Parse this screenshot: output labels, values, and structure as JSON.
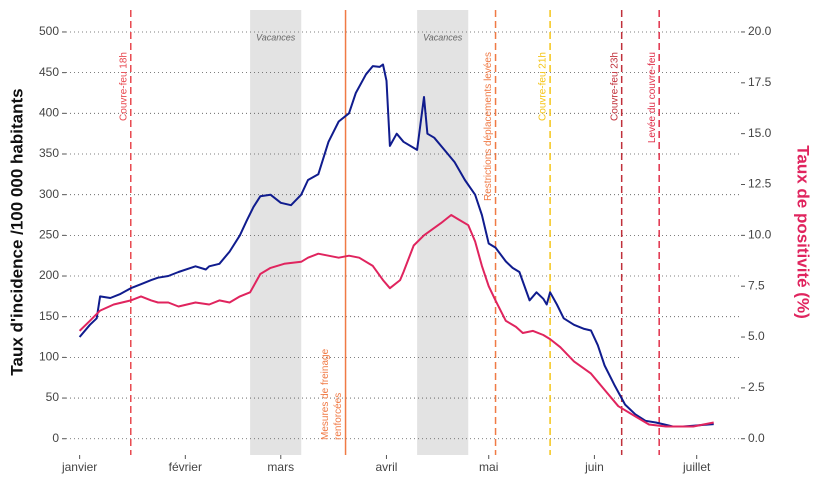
{
  "chart_data": {
    "type": "line",
    "y_label": "Taux d'incidence /100 000 habitants",
    "y2_label": "Taux de positivité (%)",
    "y2_label_color": "#e0245e",
    "xlim": [
      -4,
      194
    ],
    "xticks": [
      {
        "value": 0,
        "label": "janvier"
      },
      {
        "value": 31,
        "label": "février"
      },
      {
        "value": 59,
        "label": "mars"
      },
      {
        "value": 90,
        "label": "avril"
      },
      {
        "value": 120,
        "label": "mai"
      },
      {
        "value": 151,
        "label": "juin"
      },
      {
        "value": 181,
        "label": "juillet"
      }
    ],
    "ylim": [
      -20,
      527
    ],
    "yticks": [
      0,
      50,
      100,
      150,
      200,
      250,
      300,
      350,
      400,
      450,
      500
    ],
    "y2lim": [
      -0.8,
      21.08
    ],
    "y2ticks": [
      {
        "value": 0,
        "label": "0.0"
      },
      2.5,
      {
        "value": 5,
        "label": "5.0"
      },
      7.5,
      {
        "value": 10,
        "label": "10.0"
      },
      12.5,
      {
        "value": 15,
        "label": "15.0"
      },
      17.5,
      {
        "value": 20,
        "label": "20.0"
      }
    ],
    "grid": true,
    "shaded": [
      {
        "label": "Vacances",
        "start": 50,
        "end": 65,
        "color": "#e3e3e3"
      },
      {
        "label": "Vacances",
        "start": 99,
        "end": 114,
        "color": "#e3e3e3"
      }
    ],
    "vlines": [
      {
        "x": 15,
        "label": [
          "Couvre-feu 18h"
        ],
        "color": "#e8484f",
        "dashed": true,
        "label_at": "top"
      },
      {
        "x": 78,
        "label": [
          "Mesures de freinage",
          "renforcées"
        ],
        "color": "#f07a45",
        "dashed": false,
        "label_at": "bottom"
      },
      {
        "x": 122,
        "label": [
          "Restrictions déplacements levées"
        ],
        "color": "#f07a45",
        "dashed": true,
        "label_at": "top"
      },
      {
        "x": 138,
        "label": [
          "Couvre-feu 21h"
        ],
        "color": "#f5c518",
        "dashed": true,
        "label_at": "top"
      },
      {
        "x": 159,
        "label": [
          "Couvre-feu 23h"
        ],
        "color": "#c0303a",
        "dashed": true,
        "label_at": "top"
      },
      {
        "x": 170,
        "label": [
          "Levée du couvre-feu"
        ],
        "color": "#e0304a",
        "dashed": true,
        "label_at": "top"
      }
    ],
    "series": [
      {
        "name": "Taux d'incidence",
        "color": "#101c8e",
        "x": [
          0,
          3,
          5,
          6,
          9,
          12,
          15,
          18,
          21,
          23,
          26,
          29,
          34,
          37,
          38,
          41,
          44,
          47,
          49,
          51,
          53,
          56,
          59,
          62,
          65,
          67,
          70,
          73,
          76,
          79,
          81,
          84,
          86,
          88,
          89,
          90,
          91,
          93,
          95,
          99,
          101,
          102,
          104,
          107,
          110,
          113,
          116,
          118,
          120,
          122,
          125,
          127,
          129,
          132,
          134,
          136,
          137,
          138,
          140,
          142,
          145,
          148,
          150,
          152,
          154,
          157,
          160,
          163,
          166,
          169,
          172,
          174,
          177,
          180,
          183,
          186
        ],
        "values": [
          125,
          140,
          148,
          175,
          173,
          178,
          185,
          190,
          195,
          198,
          200,
          205,
          212,
          208,
          212,
          215,
          230,
          250,
          268,
          285,
          298,
          300,
          290,
          287,
          300,
          318,
          325,
          365,
          390,
          400,
          425,
          448,
          458,
          457,
          460,
          440,
          360,
          375,
          365,
          355,
          420,
          375,
          370,
          355,
          340,
          318,
          300,
          275,
          240,
          235,
          218,
          210,
          205,
          170,
          180,
          172,
          165,
          180,
          165,
          148,
          140,
          135,
          133,
          115,
          90,
          65,
          42,
          30,
          22,
          20,
          17,
          15,
          15,
          16,
          17,
          18
        ]
      },
      {
        "name": "Taux de positivité",
        "color": "#e0245e",
        "axis": "y2",
        "x": [
          0,
          3,
          6,
          10,
          15,
          18,
          21,
          23,
          26,
          29,
          34,
          38,
          41,
          44,
          47,
          50,
          53,
          56,
          60,
          65,
          67,
          70,
          73,
          76,
          79,
          82,
          86,
          89,
          91,
          94,
          95,
          98,
          101,
          106,
          109,
          111,
          114,
          116,
          118,
          120,
          122,
          125,
          128,
          130,
          133,
          136,
          138,
          141,
          145,
          150,
          154,
          158,
          163,
          167,
          172,
          176,
          180,
          183,
          186
        ],
        "values": [
          5.3,
          5.8,
          6.3,
          6.6,
          6.8,
          7.0,
          6.8,
          6.7,
          6.7,
          6.5,
          6.7,
          6.6,
          6.8,
          6.7,
          7.0,
          7.2,
          8.1,
          8.4,
          8.6,
          8.7,
          8.9,
          9.1,
          9.0,
          8.9,
          9.0,
          8.9,
          8.5,
          7.8,
          7.4,
          7.8,
          8.2,
          9.5,
          10.0,
          10.6,
          11.0,
          10.8,
          10.5,
          9.7,
          8.5,
          7.5,
          6.8,
          5.8,
          5.5,
          5.2,
          5.3,
          5.1,
          4.9,
          4.5,
          3.8,
          3.2,
          2.4,
          1.6,
          1.1,
          0.7,
          0.6,
          0.6,
          0.6,
          0.7,
          0.8
        ]
      }
    ]
  }
}
